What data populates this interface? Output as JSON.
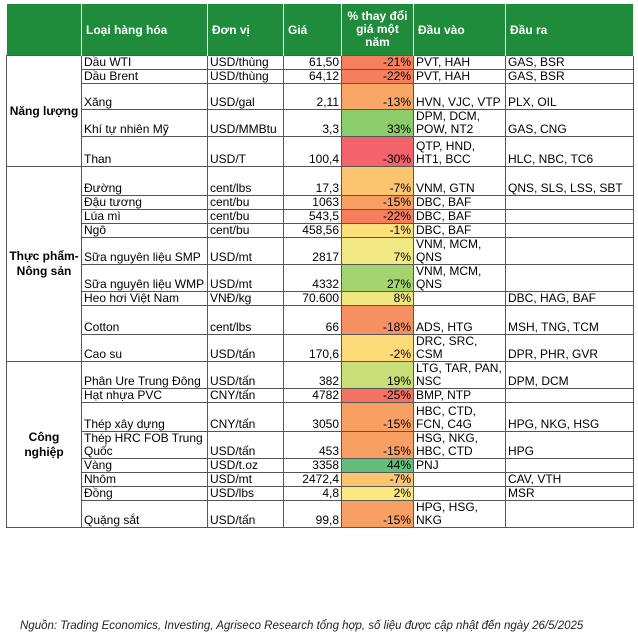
{
  "headers": [
    "Loại hàng hóa",
    "Đơn vị",
    "Giá",
    "% thay đổi giá một năm",
    "Đầu vào",
    "Đầu ra"
  ],
  "groups": [
    {
      "name": "Năng lượng",
      "rows": [
        {
          "product": "Dầu WTI",
          "unit": "USD/thùng",
          "price": "61,50",
          "change": "-21%",
          "input": "PVT, HAH",
          "output": "GAS, BSR",
          "color": "#f4805e"
        },
        {
          "product": "Dầu Brent",
          "unit": "USD/thùng",
          "price": "64,12",
          "change": "-22%",
          "input": "PVT, HAH",
          "output": "GAS, BSR",
          "color": "#f47e5e"
        },
        {
          "product": "Xăng",
          "unit": "USD/gal",
          "price": "2,11",
          "change": "-13%",
          "input": "HVN, VJC, VTP",
          "output": "PLX, OIL",
          "color": "#f9a766"
        },
        {
          "product": "Khí tự nhiên Mỹ",
          "unit": "USD/MMBtu",
          "price": "3,3",
          "change": "33%",
          "input": "DPM, DCM, POW, NT2",
          "output": "GAS, CNG",
          "color": "#8ccc6a"
        },
        {
          "product": "Than",
          "unit": "USD/T",
          "price": "100,4",
          "change": "-30%",
          "input": "QTP, HND, HT1, BCC",
          "output": "HLC, NBC, TC6",
          "color": "#f2636b"
        }
      ]
    },
    {
      "name": "Thực phẩm-Nông sản",
      "rows": [
        {
          "product": "Đường",
          "unit": "cent/lbs",
          "price": "17,3",
          "change": "-7%",
          "input": "VNM, GTN",
          "output": "QNS, SLS, LSS, SBT",
          "color": "#fbc46e"
        },
        {
          "product": "Đậu tương",
          "unit": "cent/bu",
          "price": "1063",
          "change": "-15%",
          "input": "DBC, BAF",
          "output": "",
          "color": "#f8a064"
        },
        {
          "product": "Lúa mì",
          "unit": "cent/bu",
          "price": "543,5",
          "change": "-22%",
          "input": "DBC, BAF",
          "output": "",
          "color": "#f47e5e"
        },
        {
          "product": "Ngô",
          "unit": "cent/bu",
          "price": "458,56",
          "change": "-1%",
          "input": "DBC, BAF",
          "output": "",
          "color": "#fde07a"
        },
        {
          "product": "Sữa nguyên liệu SMP",
          "unit": "USD/mt",
          "price": "2817",
          "change": "7%",
          "input": "VNM, MCM, QNS",
          "output": "",
          "color": "#f2e882"
        },
        {
          "product": "Sữa nguyên liệu WMP",
          "unit": "USD/mt",
          "price": "4332",
          "change": "27%",
          "input": "VNM, MCM, QNS",
          "output": "",
          "color": "#a5d46e"
        },
        {
          "product": "Heo hơi Việt Nam",
          "unit": "VNĐ/kg",
          "price": "70.600",
          "change": "8%",
          "input": "",
          "output": "DBC, HAG, BAF",
          "color": "#efe682"
        },
        {
          "product": "Cotton",
          "unit": "cent/lbs",
          "price": "66",
          "change": "-18%",
          "input": "ADS, HTG",
          "output": "MSH, TNG, TCM",
          "color": "#f68f61"
        },
        {
          "product": "Cao su",
          "unit": "USD/tấn",
          "price": "170,6",
          "change": "-2%",
          "input": "DRC, SRC, CSM",
          "output": "DPR, PHR, GVR",
          "color": "#fddb78"
        }
      ]
    },
    {
      "name": "Công nghiệp",
      "rows": [
        {
          "product": "Phân Ure Trung Đông",
          "unit": "USD/tấn",
          "price": "382",
          "change": "19%",
          "input": "LTG, TAR, PAN, NSC",
          "output": "DPM, DCM",
          "color": "#c9de76"
        },
        {
          "product": "Hạt nhựa PVC",
          "unit": "CNY/tấn",
          "price": "4782",
          "change": "-25%",
          "input": "BMP, NTP",
          "output": "",
          "color": "#f37363"
        },
        {
          "product": "Thép xây dựng",
          "unit": "CNY/tấn",
          "price": "3050",
          "change": "-15%",
          "input": "HBC, CTD, FCN, C4G",
          "output": "HPG, NKG, HSG",
          "color": "#f8a064"
        },
        {
          "product": "Thép HRC FOB Trung Quốc",
          "unit": "USD/tấn",
          "price": "453",
          "change": "-15%",
          "input": "HSG, NKG, HBC, CTD",
          "output": "HPG",
          "color": "#f8a064"
        },
        {
          "product": "Vàng",
          "unit": "USD/t.oz",
          "price": "3358",
          "change": "44%",
          "input": "PNJ",
          "output": "",
          "color": "#63be7b"
        },
        {
          "product": "Nhôm",
          "unit": "USD/mt",
          "price": "2472,4",
          "change": "-7%",
          "input": "",
          "output": "CAV, VTH",
          "color": "#fbc46e"
        },
        {
          "product": "Đồng",
          "unit": "USD/lbs",
          "price": "4,8",
          "change": "2%",
          "input": "",
          "output": "MSR",
          "color": "#fde880"
        },
        {
          "product": "Quặng sắt",
          "unit": "USD/tấn",
          "price": "99,8",
          "change": "-15%",
          "input": "HPG, HSG, NKG",
          "output": "",
          "color": "#f8a064"
        }
      ]
    }
  ],
  "source": "Nguồn: Trading Economics, Investing, Agriseco Research tổng hợp, số liệu được cập nhật đến ngày 26/5/2025"
}
